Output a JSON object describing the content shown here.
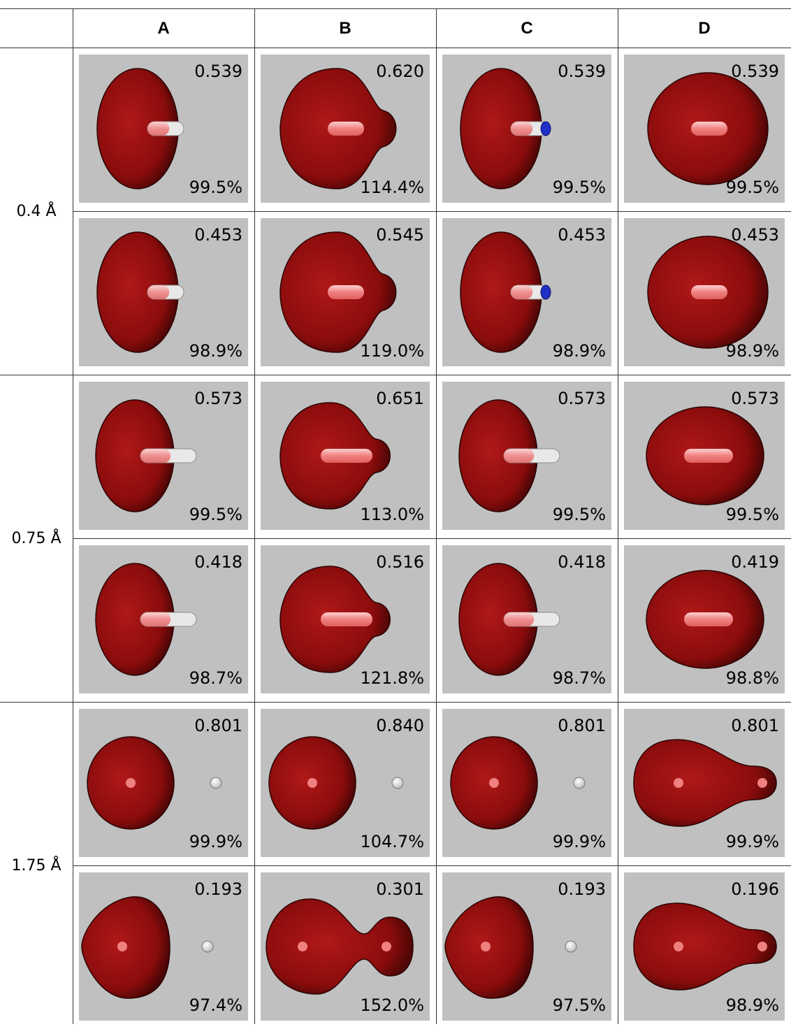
{
  "columns": [
    "A",
    "B",
    "C",
    "D"
  ],
  "rows": [
    {
      "label": "0.4 Å",
      "panels": [
        [
          {
            "value": "0.539",
            "percent": "99.5%",
            "shape": "half-right-h",
            "atom": "h-stub"
          },
          {
            "value": "0.620",
            "percent": "114.4%",
            "shape": "lobe-right",
            "atom": "none"
          },
          {
            "value": "0.539",
            "percent": "99.5%",
            "shape": "half-right-h",
            "atom": "blue-cap"
          },
          {
            "value": "0.539",
            "percent": "99.5%",
            "shape": "sphere-wide",
            "atom": "none"
          }
        ],
        [
          {
            "value": "0.453",
            "percent": "98.9%",
            "shape": "half-right-h",
            "atom": "h-stub"
          },
          {
            "value": "0.545",
            "percent": "119.0%",
            "shape": "lobe-right",
            "atom": "none"
          },
          {
            "value": "0.453",
            "percent": "98.9%",
            "shape": "half-right-h",
            "atom": "blue-cap"
          },
          {
            "value": "0.453",
            "percent": "98.9%",
            "shape": "sphere-wide",
            "atom": "none"
          }
        ]
      ]
    },
    {
      "label": "0.75 Å",
      "panels": [
        [
          {
            "value": "0.573",
            "percent": "99.5%",
            "shape": "half-right-m",
            "atom": "h-stub-long"
          },
          {
            "value": "0.651",
            "percent": "113.0%",
            "shape": "lobe-right-m",
            "atom": "none"
          },
          {
            "value": "0.573",
            "percent": "99.5%",
            "shape": "half-right-m",
            "atom": "h-stub-long"
          },
          {
            "value": "0.573",
            "percent": "99.5%",
            "shape": "ellipse-wide",
            "atom": "none"
          }
        ],
        [
          {
            "value": "0.418",
            "percent": "98.7%",
            "shape": "half-right-m",
            "atom": "h-stub-long"
          },
          {
            "value": "0.516",
            "percent": "121.8%",
            "shape": "lobe-right-m",
            "atom": "none"
          },
          {
            "value": "0.418",
            "percent": "98.7%",
            "shape": "half-right-m",
            "atom": "h-stub-long"
          },
          {
            "value": "0.419",
            "percent": "98.8%",
            "shape": "ellipse-wide",
            "atom": "none"
          }
        ]
      ]
    },
    {
      "label": "1.75 Å",
      "panels": [
        [
          {
            "value": "0.801",
            "percent": "99.9%",
            "shape": "sphere-left",
            "atom": "h-dot"
          },
          {
            "value": "0.840",
            "percent": "104.7%",
            "shape": "sphere-left",
            "atom": "h-dot"
          },
          {
            "value": "0.801",
            "percent": "99.9%",
            "shape": "sphere-left",
            "atom": "h-dot"
          },
          {
            "value": "0.801",
            "percent": "99.9%",
            "shape": "dumbbell-neck",
            "atom": "none"
          }
        ],
        [
          {
            "value": "0.193",
            "percent": "97.4%",
            "shape": "teardrop-left",
            "atom": "h-dot"
          },
          {
            "value": "0.301",
            "percent": "152.0%",
            "shape": "two-lobes",
            "atom": "none"
          },
          {
            "value": "0.193",
            "percent": "97.5%",
            "shape": "teardrop-left",
            "atom": "h-dot"
          },
          {
            "value": "0.196",
            "percent": "98.9%",
            "shape": "dumbbell-neck",
            "atom": "none"
          }
        ]
      ]
    }
  ],
  "colors": {
    "panel_bg": "#c0c0c0",
    "density": "#8a0c0c",
    "density_highlight": "#b01818",
    "density_edge": "#3a0404",
    "bond": "#f08080",
    "hydrogen": "#ffffff",
    "cap": "#2030c8"
  }
}
